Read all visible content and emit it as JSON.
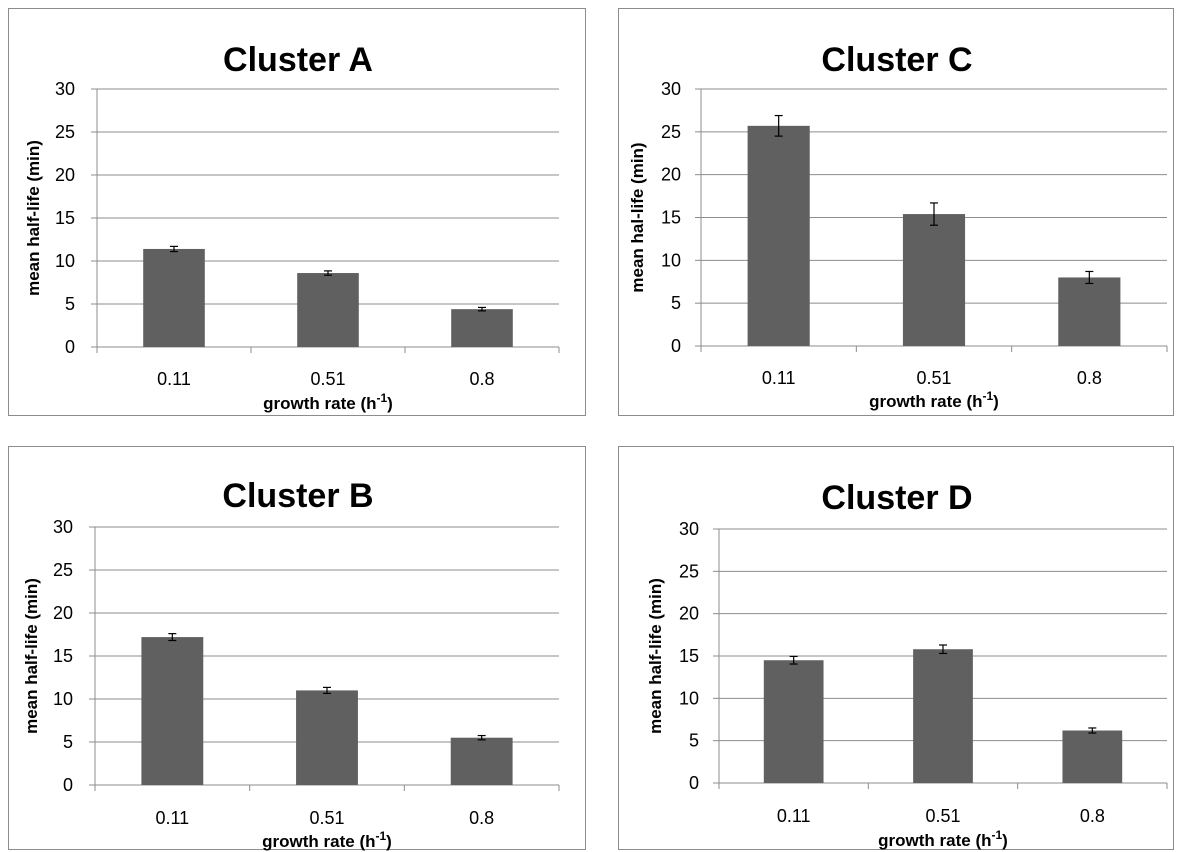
{
  "chart_data": [
    {
      "type": "bar",
      "title": "Cluster A",
      "xlabel": "growth rate (h",
      "xlabel_sup": "-1",
      "xlabel_end": ")",
      "ylabel": "mean half-life (min)",
      "categories": [
        "0.11",
        "0.51",
        "0.8"
      ],
      "values": [
        11.4,
        8.6,
        4.4
      ],
      "errors": [
        0.3,
        0.25,
        0.2
      ],
      "ylim": [
        0,
        30
      ],
      "yticks": [
        0,
        5,
        10,
        15,
        20,
        25,
        30
      ],
      "grid": true,
      "bar_color": "#606060"
    },
    {
      "type": "bar",
      "title": "Cluster C",
      "xlabel": "growth rate (h",
      "xlabel_sup": "-1",
      "xlabel_end": ")",
      "ylabel": "mean hal-life (min)",
      "categories": [
        "0.11",
        "0.51",
        "0.8"
      ],
      "values": [
        25.7,
        15.4,
        8.0
      ],
      "errors": [
        1.2,
        1.3,
        0.7
      ],
      "ylim": [
        0,
        30
      ],
      "yticks": [
        0,
        5,
        10,
        15,
        20,
        25,
        30
      ],
      "grid": true,
      "bar_color": "#606060"
    },
    {
      "type": "bar",
      "title": "Cluster B",
      "xlabel": "growth rate (h",
      "xlabel_sup": "-1",
      "xlabel_end": ")",
      "ylabel": "mean half-life (min)",
      "categories": [
        "0.11",
        "0.51",
        "0.8"
      ],
      "values": [
        17.2,
        11.0,
        5.5
      ],
      "errors": [
        0.4,
        0.35,
        0.25
      ],
      "ylim": [
        0,
        30
      ],
      "yticks": [
        0,
        5,
        10,
        15,
        20,
        25,
        30
      ],
      "grid": true,
      "bar_color": "#606060"
    },
    {
      "type": "bar",
      "title": "Cluster D",
      "xlabel": "growth rate (h",
      "xlabel_sup": "-1",
      "xlabel_end": ")",
      "ylabel": "mean half-life (min)",
      "categories": [
        "0.11",
        "0.51",
        "0.8"
      ],
      "values": [
        14.5,
        15.8,
        6.2
      ],
      "errors": [
        0.45,
        0.5,
        0.3
      ],
      "ylim": [
        0,
        30
      ],
      "yticks": [
        0,
        5,
        10,
        15,
        20,
        25,
        30
      ],
      "grid": true,
      "bar_color": "#606060"
    }
  ]
}
